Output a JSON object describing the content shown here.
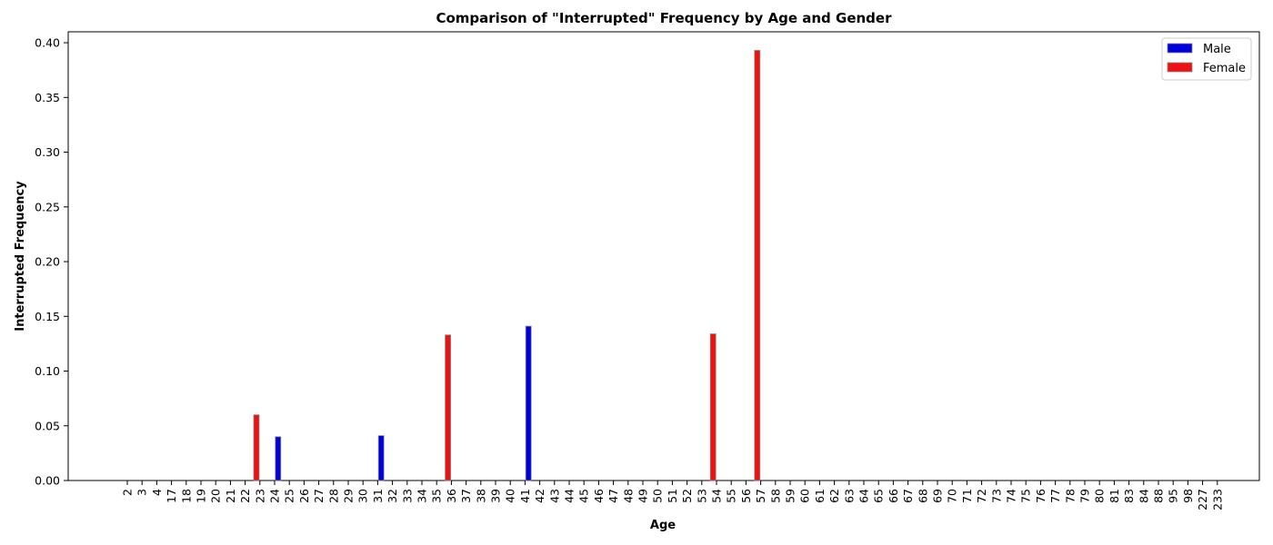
{
  "chart_data": {
    "type": "bar",
    "title": "Comparison of \"Interrupted\" Frequency by Age and Gender",
    "xlabel": "Age",
    "ylabel": "Interrupted Frequency",
    "ylim": [
      0,
      0.41
    ],
    "yticks": [
      0.0,
      0.05,
      0.1,
      0.15,
      0.2,
      0.25,
      0.3,
      0.35,
      0.4
    ],
    "categories": [
      "2",
      "3",
      "4",
      "17",
      "18",
      "19",
      "20",
      "21",
      "22",
      "23",
      "24",
      "25",
      "26",
      "27",
      "28",
      "29",
      "30",
      "31",
      "32",
      "33",
      "34",
      "35",
      "36",
      "37",
      "38",
      "39",
      "40",
      "41",
      "42",
      "43",
      "44",
      "45",
      "46",
      "47",
      "48",
      "49",
      "50",
      "51",
      "52",
      "53",
      "54",
      "55",
      "56",
      "57",
      "58",
      "59",
      "60",
      "61",
      "62",
      "63",
      "64",
      "65",
      "66",
      "67",
      "68",
      "69",
      "70",
      "71",
      "72",
      "73",
      "74",
      "75",
      "76",
      "77",
      "78",
      "79",
      "80",
      "81",
      "83",
      "84",
      "88",
      "95",
      "98",
      "227",
      "233"
    ],
    "series": [
      {
        "name": "Male",
        "color": "#0000dd",
        "values": {
          "24": 0.04,
          "31": 0.041,
          "41": 0.141
        }
      },
      {
        "name": "Female",
        "color": "#ee1111",
        "values": {
          "23": 0.06,
          "36": 0.133,
          "54": 0.134,
          "57": 0.393
        }
      }
    ],
    "grid": false,
    "legend_position": "top-right"
  }
}
